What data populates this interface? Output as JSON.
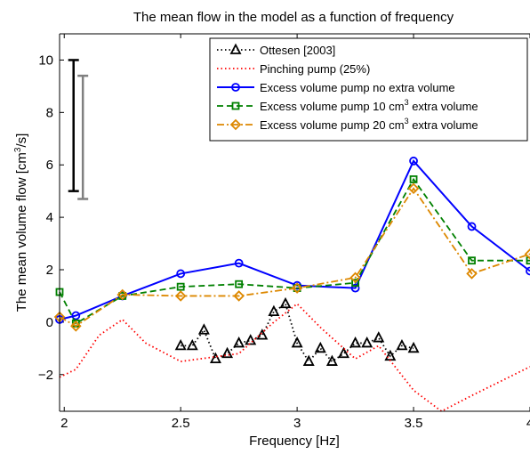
{
  "chart_data": {
    "type": "line",
    "title": "The mean flow in the model as a function of frequency",
    "xlabel": "Frequency [Hz]",
    "ylabel_parts": [
      "The mean volume flow [cm",
      "3",
      "/s]"
    ],
    "xlim": [
      1.98,
      4.0
    ],
    "ylim": [
      -3.4,
      11.0
    ],
    "xticks": [
      2,
      2.5,
      3,
      3.5,
      4
    ],
    "xtick_labels": [
      "2",
      "2.5",
      "3",
      "3.5",
      "4"
    ],
    "yticks": [
      -2,
      0,
      2,
      4,
      6,
      8,
      10
    ],
    "ytick_labels": [
      "−2",
      "0",
      "2",
      "4",
      "6",
      "8",
      "10"
    ],
    "grid": false,
    "legend_position": "top-right",
    "series": [
      {
        "name_parts": [
          "Ottesen [2003]"
        ],
        "color": "#000000",
        "line": "dotted",
        "marker": "triangle",
        "x": [
          2.5,
          2.55,
          2.6,
          2.65,
          2.7,
          2.75,
          2.8,
          2.85,
          2.9,
          2.95,
          3.0,
          3.05,
          3.1,
          3.15,
          3.2,
          3.25,
          3.3,
          3.35,
          3.4,
          3.45,
          3.5
        ],
        "y": [
          -0.9,
          -0.9,
          -0.3,
          -1.4,
          -1.2,
          -0.8,
          -0.7,
          -0.5,
          0.4,
          0.7,
          -0.8,
          -1.5,
          -1.0,
          -1.5,
          -1.2,
          -0.8,
          -0.8,
          -0.6,
          -1.3,
          -0.9,
          -1.0
        ]
      },
      {
        "name_parts": [
          "Pinching pump (25%)"
        ],
        "color": "#ff0000",
        "line": "dotted",
        "marker": "none",
        "x": [
          1.98,
          2.05,
          2.15,
          2.25,
          2.35,
          2.5,
          2.75,
          2.9,
          3.0,
          3.1,
          3.25,
          3.35,
          3.5,
          3.62,
          3.75,
          4.0
        ],
        "y": [
          -2.1,
          -1.8,
          -0.5,
          0.1,
          -0.8,
          -1.5,
          -1.2,
          0.0,
          0.7,
          -0.2,
          -1.4,
          -0.9,
          -2.6,
          -3.4,
          -2.8,
          -1.7
        ]
      },
      {
        "name_parts": [
          "Excess volume pump no extra volume"
        ],
        "color": "#0000ff",
        "line": "solid",
        "marker": "circle",
        "x": [
          1.98,
          2.05,
          2.25,
          2.5,
          2.75,
          3.0,
          3.25,
          3.5,
          3.75,
          4.0
        ],
        "y": [
          0.1,
          0.25,
          1.0,
          1.85,
          2.25,
          1.4,
          1.3,
          6.15,
          3.65,
          1.95
        ]
      },
      {
        "name_parts": [
          "Excess volume pump 10 cm",
          "3",
          " extra volume"
        ],
        "color": "#008000",
        "line": "dashed",
        "marker": "square",
        "x": [
          1.98,
          2.05,
          2.25,
          2.5,
          2.75,
          3.0,
          3.25,
          3.5,
          3.75,
          4.0
        ],
        "y": [
          1.15,
          -0.05,
          1.0,
          1.35,
          1.45,
          1.3,
          1.5,
          5.45,
          2.35,
          2.35
        ]
      },
      {
        "name_parts": [
          "Excess volume pump 20 cm",
          "3",
          " extra volume"
        ],
        "color": "#dd8800",
        "line": "dashdot",
        "marker": "diamond",
        "x": [
          1.98,
          2.05,
          2.25,
          2.5,
          2.75,
          3.0,
          3.25,
          3.5,
          3.75,
          4.0
        ],
        "y": [
          0.2,
          -0.15,
          1.05,
          1.0,
          1.0,
          1.3,
          1.7,
          5.1,
          1.85,
          2.6
        ]
      }
    ],
    "error_bars": [
      {
        "x": 2.04,
        "y_low": 5.0,
        "y_high": 10.0,
        "color": "#000000"
      },
      {
        "x": 2.08,
        "y_low": 4.7,
        "y_high": 9.4,
        "color": "#808080"
      }
    ]
  }
}
